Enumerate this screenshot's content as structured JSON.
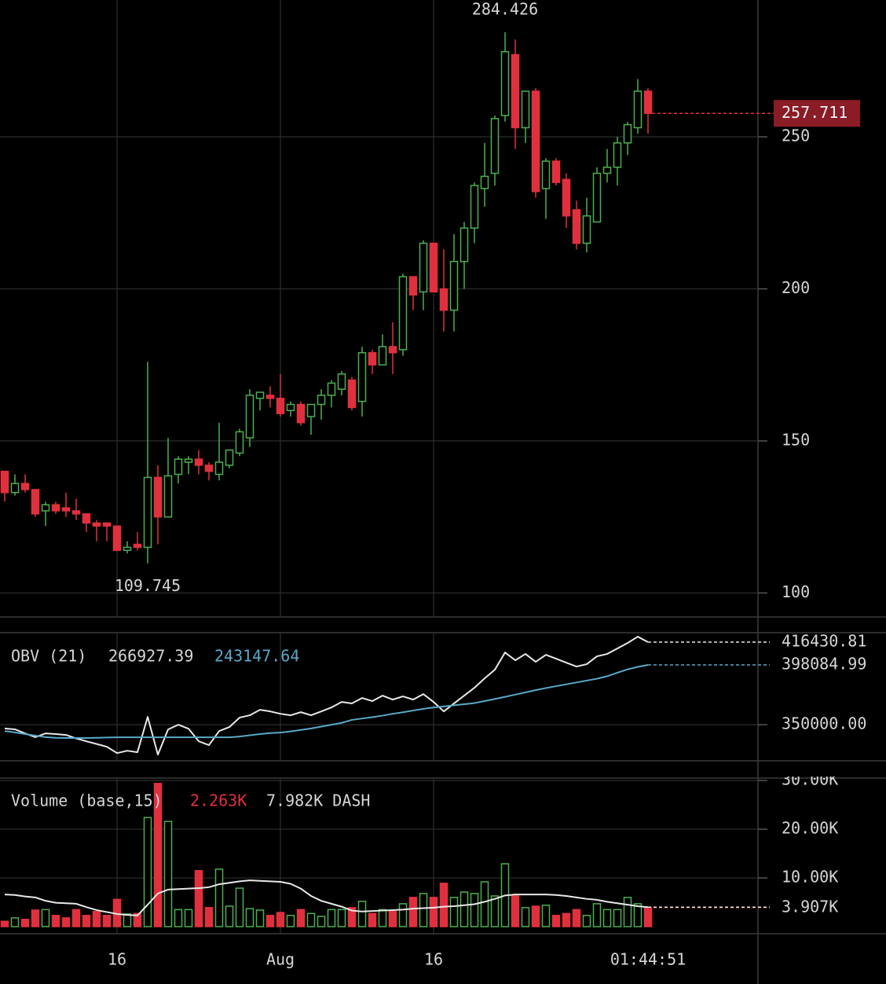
{
  "chart_data": [
    {
      "type": "candlestick",
      "categories": [
        null,
        null,
        null,
        null,
        null,
        null,
        null,
        null,
        null,
        null,
        null,
        "16",
        null,
        null,
        null,
        null,
        null,
        null,
        null,
        null,
        null,
        null,
        null,
        null,
        null,
        null,
        null,
        "Aug",
        null,
        null,
        null,
        null,
        null,
        null,
        null,
        null,
        null,
        null,
        null,
        null,
        null,
        null,
        "16",
        null,
        null,
        null,
        null,
        null,
        null,
        null,
        null,
        null,
        null,
        null,
        null,
        null,
        null,
        null,
        null,
        null,
        null,
        null,
        null,
        null
      ],
      "open": [
        140,
        133,
        136,
        134,
        127,
        129,
        128,
        127,
        126,
        123,
        123,
        122,
        114,
        116,
        115,
        138,
        125,
        139,
        143,
        144,
        142,
        139,
        142,
        146,
        151,
        164,
        165,
        164,
        160,
        162,
        158,
        162,
        165,
        167,
        170,
        163,
        179,
        175,
        181,
        180,
        204,
        199,
        215,
        200,
        193,
        209,
        220,
        233,
        238,
        257,
        277,
        253,
        265,
        233,
        242,
        236,
        226,
        215,
        222,
        238,
        240,
        248,
        253,
        265
      ],
      "high": [
        140,
        139,
        139,
        134,
        130,
        130,
        133,
        131,
        126,
        124,
        123,
        122,
        117,
        120,
        176,
        142,
        151,
        145,
        145,
        147,
        143,
        156,
        147,
        154,
        167,
        166,
        168,
        172,
        163,
        163,
        162,
        167,
        170,
        173,
        171,
        181,
        180,
        185,
        189,
        205,
        204,
        216,
        215,
        213,
        218,
        222,
        235,
        248,
        257,
        284.426,
        282,
        265,
        266,
        243,
        243,
        238,
        229,
        230,
        240,
        246,
        250,
        255,
        269,
        266
      ],
      "low": [
        130,
        132,
        133,
        125,
        122,
        126,
        125,
        124,
        120,
        117,
        117,
        114,
        113,
        114,
        109.745,
        116,
        125,
        136,
        139,
        139,
        137,
        137,
        141,
        145,
        148,
        160,
        161,
        158,
        158,
        155,
        152,
        157,
        161,
        165,
        160,
        158,
        172,
        175,
        172,
        178,
        193,
        193,
        199,
        186,
        186,
        200,
        215,
        227,
        234,
        255,
        246,
        248,
        230,
        223,
        234,
        220,
        213,
        212,
        222,
        235,
        234,
        244,
        251,
        251
      ],
      "close": [
        133,
        136,
        134,
        126,
        129,
        127,
        127,
        126,
        123,
        122,
        122,
        114,
        115,
        115,
        138,
        125,
        138.5,
        144,
        144,
        142,
        140,
        143,
        147,
        153,
        165,
        166,
        164,
        159,
        162,
        156,
        162,
        165,
        169,
        172,
        161,
        179,
        175,
        181,
        179,
        204,
        198,
        215,
        199,
        193,
        209,
        220,
        234,
        237,
        256,
        278,
        253,
        265,
        232,
        242,
        235,
        224,
        215,
        224,
        238,
        240,
        248,
        254,
        265,
        257.711
      ],
      "up_color": "#4caf50",
      "down_color": "#e0303e",
      "ylim": [
        92.1,
        295
      ],
      "yticks": [
        100,
        150,
        200,
        250
      ],
      "grid": true,
      "countdown": "01:44:51"
    },
    {
      "type": "line",
      "title": "OBV (21)",
      "series": [
        {
          "legend_value": "266927.39",
          "color": "#e8e8e8",
          "values": [
            347000,
            346300,
            343000,
            340000,
            343000,
            342500,
            341800,
            339000,
            336700,
            334500,
            332300,
            327200,
            329100,
            327900,
            356300,
            326000,
            346200,
            350000,
            346800,
            336700,
            333600,
            344900,
            348100,
            355700,
            357600,
            362000,
            360700,
            358800,
            357600,
            360100,
            357600,
            360700,
            363900,
            368300,
            367100,
            371500,
            369000,
            373400,
            370200,
            372800,
            370200,
            374600,
            368300,
            360700,
            367100,
            373400,
            379700,
            387300,
            394200,
            408100,
            401800,
            406900,
            400600,
            406200,
            403100,
            399900,
            396800,
            398700,
            405000,
            406900,
            411300,
            415700,
            420800,
            416430.81
          ]
        },
        {
          "legend_value": "243147.64",
          "color": "#5aa9c8",
          "values": [
            344900,
            343800,
            342500,
            341200,
            340000,
            339500,
            339300,
            339300,
            339300,
            339500,
            339700,
            339900,
            339900,
            339900,
            339900,
            339900,
            339900,
            339900,
            339900,
            339900,
            339900,
            339900,
            339900,
            340500,
            341500,
            342500,
            343300,
            343700,
            344600,
            345800,
            347000,
            348500,
            350000,
            351500,
            353900,
            355000,
            356100,
            357300,
            358800,
            360000,
            361400,
            362800,
            363900,
            364700,
            365600,
            366500,
            367400,
            369000,
            370700,
            372400,
            374200,
            376000,
            377800,
            379500,
            381000,
            382500,
            384000,
            385500,
            387000,
            389000,
            391800,
            394500,
            396500,
            398084.99
          ]
        }
      ],
      "ylim": [
        321000,
        424000
      ],
      "yticks": [
        {
          "value": 350000,
          "label": "350000.00"
        }
      ],
      "grid": true
    },
    {
      "type": "bar",
      "title": "Volume (base,15)",
      "series": [
        {
          "legend_value": "2.263K",
          "color": "#e0303e",
          "values": [
            1100,
            1800,
            1500,
            3400,
            3500,
            2300,
            1800,
            3500,
            2300,
            3100,
            2300,
            5600,
            2600,
            2700,
            22400,
            29400,
            21600,
            3500,
            3500,
            11500,
            3900,
            11800,
            4200,
            7900,
            3700,
            3400,
            2300,
            2900,
            2300,
            3500,
            2700,
            2100,
            3500,
            3500,
            3900,
            5200,
            2700,
            3500,
            3100,
            4700,
            6000,
            6800,
            6000,
            8900,
            6000,
            7100,
            6800,
            9200,
            6300,
            12900,
            6300,
            3900,
            4200,
            4400,
            2300,
            2700,
            3500,
            2300,
            4700,
            3500,
            3500,
            6000,
            4700,
            3907
          ],
          "value_labels": [
            null,
            null,
            null,
            null,
            null,
            null,
            null,
            null,
            null,
            null,
            null,
            null,
            null,
            null,
            null,
            null,
            null,
            null,
            null,
            null,
            null,
            null,
            null,
            null,
            null,
            null,
            null,
            null,
            null,
            null,
            null,
            null,
            null,
            null,
            null,
            null,
            null,
            null,
            null,
            null,
            null,
            null,
            null,
            null,
            null,
            null,
            null,
            null,
            null,
            null,
            null,
            null,
            null,
            null,
            null,
            null,
            null,
            null,
            null,
            null,
            null,
            null,
            null,
            "3.907K"
          ]
        },
        {
          "legend_value": "7.982K DASH",
          "color": "#e8e8e8",
          "type": "line",
          "values": [
            6600,
            6500,
            6200,
            6000,
            5300,
            4900,
            4800,
            4700,
            4000,
            3400,
            3000,
            2600,
            2400,
            2300,
            4500,
            6800,
            7600,
            7700,
            7800,
            7900,
            8100,
            8700,
            9000,
            9300,
            9500,
            9400,
            9300,
            9200,
            8800,
            7800,
            6300,
            5300,
            4700,
            4100,
            3300,
            3100,
            3200,
            3300,
            3400,
            3500,
            3700,
            3800,
            3900,
            4100,
            4200,
            4400,
            4600,
            5100,
            5700,
            6400,
            6600,
            6600,
            6600,
            6600,
            6500,
            6300,
            6000,
            5700,
            5500,
            5100,
            4800,
            4500,
            4200,
            4000
          ]
        }
      ],
      "ylim": [
        -1450,
        30500
      ],
      "yticks": [
        {
          "value": 30000,
          "label": "30.00K"
        },
        {
          "value": 20000,
          "label": "20.00K"
        },
        {
          "value": 10000,
          "label": "10.00K"
        }
      ],
      "grid": true
    }
  ]
}
